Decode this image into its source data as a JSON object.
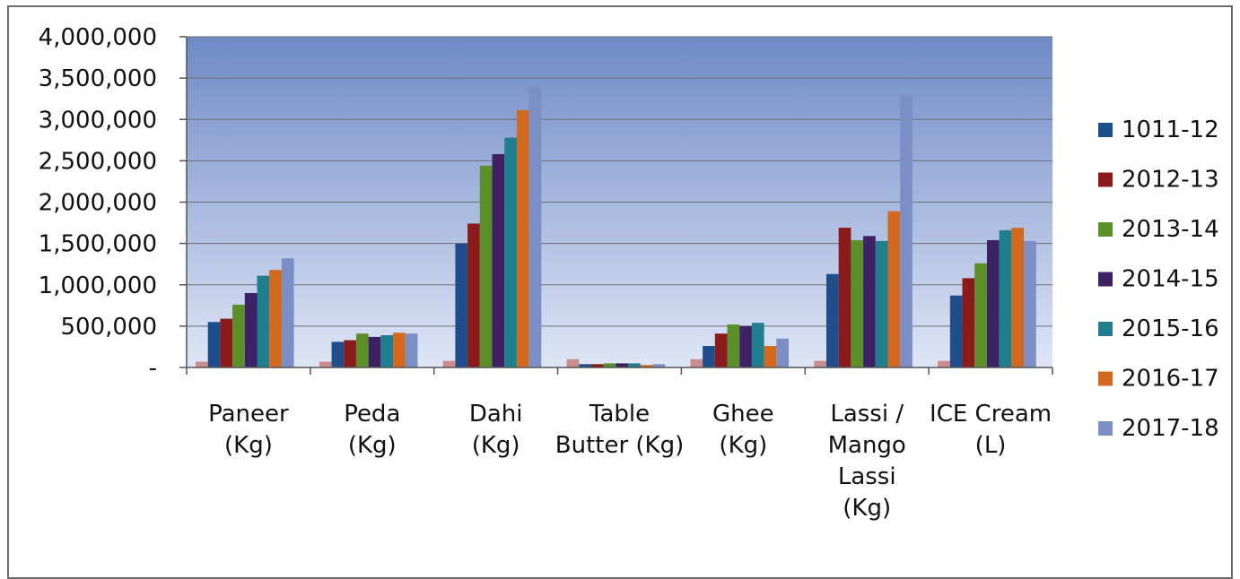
{
  "chart_data": {
    "type": "bar",
    "title": "",
    "xlabel": "",
    "ylabel": "",
    "ylim": [
      0,
      4000000
    ],
    "yticks": [
      0,
      500000,
      1000000,
      1500000,
      2000000,
      2500000,
      3000000,
      3500000,
      4000000
    ],
    "ytick_labels": [
      "-",
      "500,000",
      "1,000,000",
      "1,500,000",
      "2,000,000",
      "2,500,000",
      "3,000,000",
      "3,500,000",
      "4,000,000"
    ],
    "grid": true,
    "legend_position": "right",
    "categories": [
      [
        "Paneer",
        "(Kg)"
      ],
      [
        "Peda",
        "(Kg)"
      ],
      [
        "Dahi",
        "(Kg)"
      ],
      [
        "Table",
        "Butter (Kg)"
      ],
      [
        "Ghee",
        "(Kg)"
      ],
      [
        "Lassi /",
        "Mango",
        "Lassi",
        "(Kg)"
      ],
      [
        "ICE Cream",
        "(L)"
      ]
    ],
    "series": [
      {
        "name": "1011-12",
        "color": "#1f4e8c",
        "values": [
          550000,
          310000,
          1500000,
          40000,
          260000,
          1130000,
          870000
        ]
      },
      {
        "name": "2012-13",
        "color": "#8b1a1a",
        "values": [
          590000,
          330000,
          1740000,
          40000,
          410000,
          1690000,
          1080000
        ]
      },
      {
        "name": "2013-14",
        "color": "#5a8f29",
        "values": [
          760000,
          410000,
          2440000,
          50000,
          520000,
          1540000,
          1260000
        ]
      },
      {
        "name": "2014-15",
        "color": "#3d2164",
        "values": [
          900000,
          370000,
          2580000,
          50000,
          500000,
          1590000,
          1540000
        ]
      },
      {
        "name": "2015-16",
        "color": "#1f7f8f",
        "values": [
          1110000,
          390000,
          2780000,
          50000,
          540000,
          1530000,
          1660000
        ]
      },
      {
        "name": "2016-17",
        "color": "#d2691e",
        "values": [
          1180000,
          420000,
          3110000,
          30000,
          260000,
          1890000,
          1690000
        ]
      },
      {
        "name": "2017-18",
        "color": "#7b8fc6",
        "values": [
          1320000,
          410000,
          3390000,
          40000,
          350000,
          3290000,
          1530000
        ]
      }
    ],
    "extra_series_color": "#c98d8d",
    "extra_series_values": [
      70000,
      70000,
      80000,
      100000,
      100000,
      80000,
      80000
    ]
  }
}
